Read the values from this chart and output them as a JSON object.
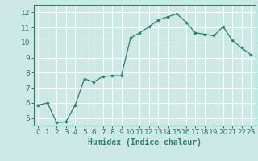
{
  "x": [
    0,
    1,
    2,
    3,
    4,
    5,
    6,
    7,
    8,
    9,
    10,
    11,
    12,
    13,
    14,
    15,
    16,
    17,
    18,
    19,
    20,
    21,
    22,
    23
  ],
  "y": [
    5.85,
    6.0,
    4.7,
    4.75,
    5.85,
    7.6,
    7.4,
    7.75,
    7.8,
    7.8,
    10.3,
    10.65,
    11.05,
    11.5,
    11.7,
    11.9,
    11.35,
    10.65,
    10.55,
    10.45,
    11.05,
    10.15,
    9.65,
    9.2
  ],
  "line_color": "#2d7d6e",
  "marker": "D",
  "marker_size": 1.8,
  "bg_color": "#cce9e4",
  "grid_color": "#ffffff",
  "xlabel": "Humidex (Indice chaleur)",
  "xlim": [
    -0.5,
    23.5
  ],
  "ylim": [
    4.5,
    12.5
  ],
  "yticks": [
    5,
    6,
    7,
    8,
    9,
    10,
    11,
    12
  ],
  "xticks": [
    0,
    1,
    2,
    3,
    4,
    5,
    6,
    7,
    8,
    9,
    10,
    11,
    12,
    13,
    14,
    15,
    16,
    17,
    18,
    19,
    20,
    21,
    22,
    23
  ],
  "label_fontsize": 7,
  "tick_fontsize": 6.5
}
